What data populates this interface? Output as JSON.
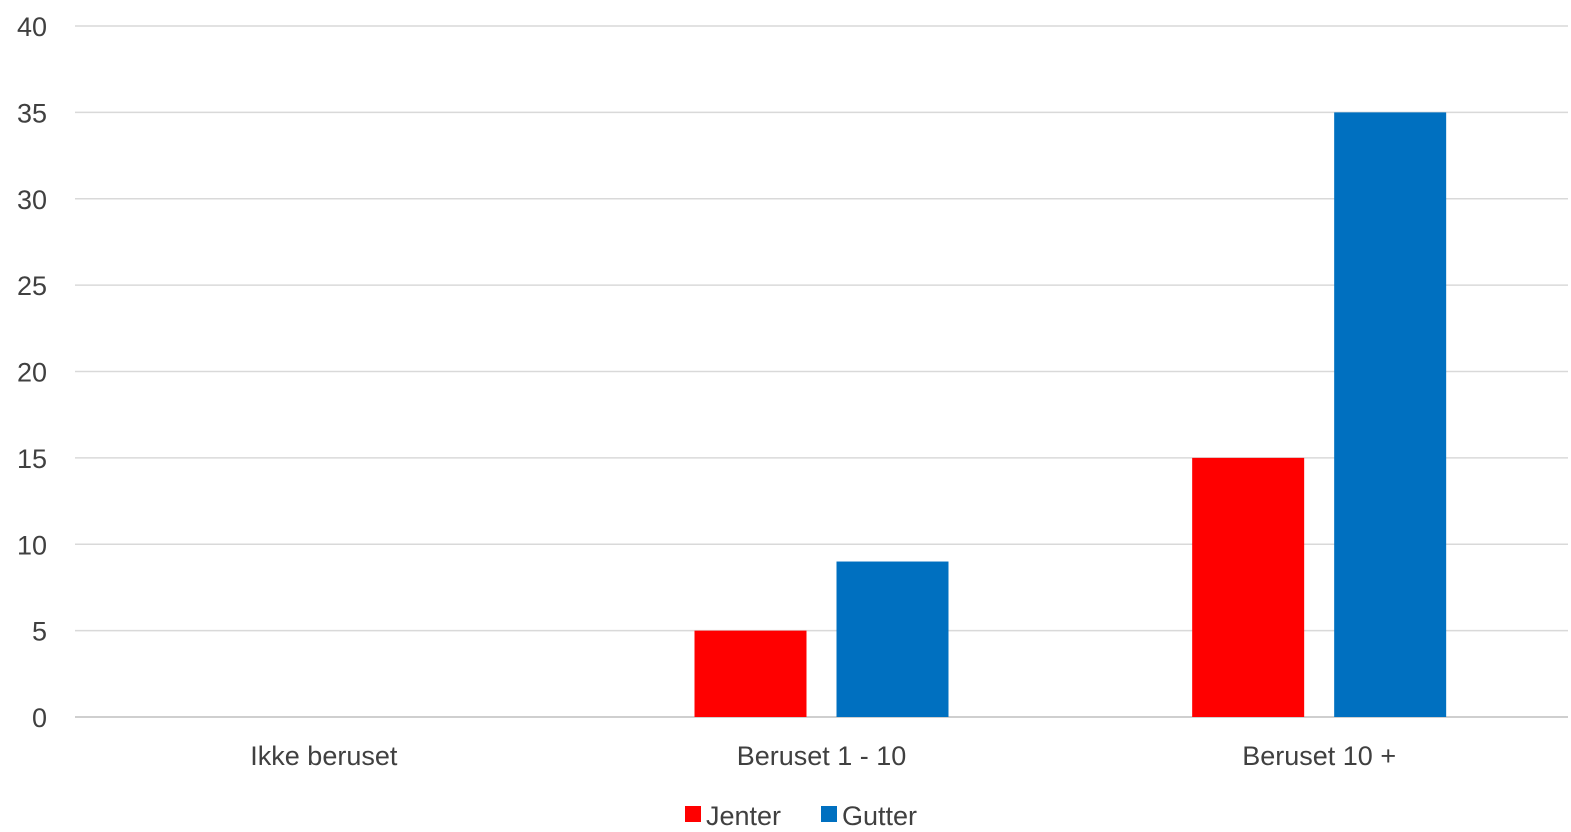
{
  "chart_data": {
    "type": "bar",
    "title": "",
    "xlabel": "",
    "ylabel": "",
    "categories": [
      "Ikke beruset",
      "Beruset 1 - 10",
      "Beruset 10 +"
    ],
    "series": [
      {
        "name": "Jenter",
        "values": [
          0,
          5,
          15
        ],
        "color": "#ff0000"
      },
      {
        "name": "Gutter",
        "values": [
          0,
          9,
          35
        ],
        "color": "#0070c0"
      }
    ],
    "ylim": [
      0,
      40
    ],
    "yticks": [
      0,
      5,
      10,
      15,
      20,
      25,
      30,
      35,
      40
    ],
    "grid": true,
    "legend_position": "bottom"
  }
}
